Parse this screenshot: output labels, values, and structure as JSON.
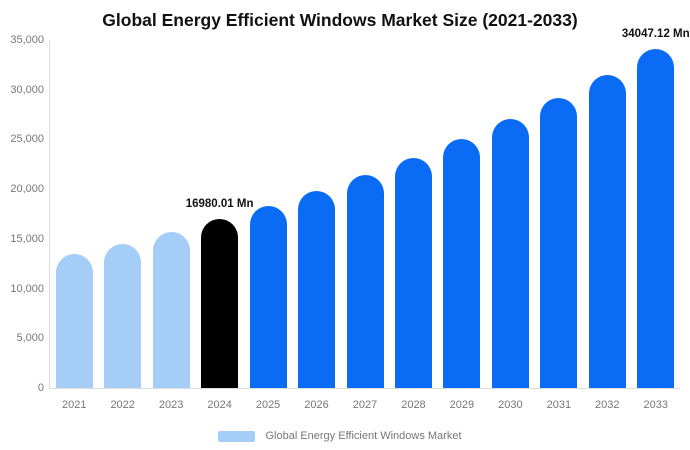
{
  "chart_data": {
    "type": "bar",
    "title": "Global Energy Efficient Windows Market Size (2021-2033)",
    "categories": [
      "2021",
      "2022",
      "2023",
      "2024",
      "2025",
      "2026",
      "2027",
      "2028",
      "2029",
      "2030",
      "2031",
      "2032",
      "2033"
    ],
    "values": [
      13430,
      14500,
      15650,
      16980.01,
      18350,
      19820,
      21415,
      23135,
      24995,
      27005,
      29180,
      31525,
      34047.12
    ],
    "unit": "Mn",
    "xlabel": "",
    "ylabel": "",
    "ylim": [
      0,
      35000
    ],
    "y_tick_step": 5000,
    "y_tick_labels": [
      "0",
      "5,000",
      "10,000",
      "15,000",
      "20,000",
      "25,000",
      "30,000",
      "35,000"
    ],
    "grid": false,
    "legend_position": "bottom",
    "bar_colors": [
      "#A4CDF8",
      "#A4CDF8",
      "#A4CDF8",
      "#000000",
      "#0A6CF5",
      "#0A6CF5",
      "#0A6CF5",
      "#0A6CF5",
      "#0A6CF5",
      "#0A6CF5",
      "#0A6CF5",
      "#0A6CF5",
      "#0A6CF5"
    ],
    "annotations": [
      {
        "category": "2024",
        "index": 3,
        "text": "16980.01 Mn"
      },
      {
        "category": "2033",
        "index": 12,
        "text": "34047.12 Mn"
      }
    ]
  },
  "legend": {
    "label": "Global Energy Efficient Windows Market",
    "swatch_color": "#A4CDF8"
  },
  "colors": {
    "background": "#FFFFFF",
    "axis_line": "#DDDDDD",
    "tick_text": "#777777",
    "title_text": "#111111",
    "annotation_text": "#111111"
  }
}
